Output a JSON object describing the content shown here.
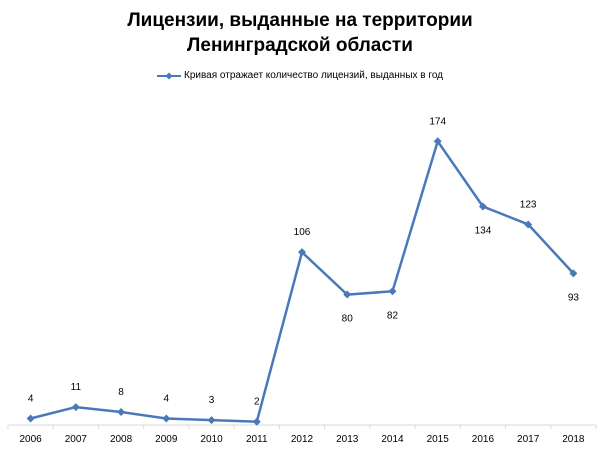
{
  "chart_data": {
    "type": "line",
    "title_line1": "Лицензии, выданные на территории",
    "title_line2": "Ленинградской области",
    "categories": [
      "2006",
      "2007",
      "2008",
      "2009",
      "2010",
      "2011",
      "2012",
      "2013",
      "2014",
      "2015",
      "2016",
      "2017",
      "2018"
    ],
    "series": [
      {
        "name": "Кривая отражает количество лицензий, выданных в год",
        "values": [
          4,
          11,
          8,
          4,
          3,
          2,
          106,
          80,
          82,
          174,
          134,
          123,
          93
        ],
        "color": "#4A78B8"
      }
    ],
    "ylim": [
      0,
      180
    ],
    "xlabel": "",
    "ylabel": "",
    "grid": false,
    "legend_position": "top-center",
    "label_positions": [
      "above",
      "above",
      "above",
      "above",
      "above",
      "above",
      "above",
      "below",
      "below",
      "above",
      "below",
      "above",
      "below"
    ]
  }
}
